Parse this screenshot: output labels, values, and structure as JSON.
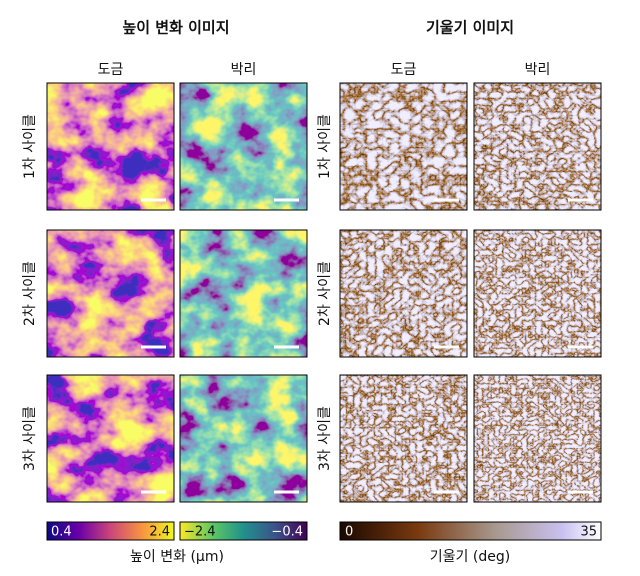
{
  "titles": [
    "높이 변화 이미지",
    "기울기 이미지"
  ],
  "columns": [
    "도금",
    "박리",
    "도금",
    "박리"
  ],
  "rows": [
    "1차 사이클",
    "2차 사이클",
    "3차 사이클"
  ],
  "colorbars": [
    {
      "min": "0.4",
      "max": "2.4"
    },
    {
      "min": "−2.4",
      "max": "−0.4"
    },
    {
      "min": "0",
      "max": "35"
    }
  ],
  "colorbar_labels": [
    "높이 변화 (μm)",
    "기울기 (deg)"
  ]
}
